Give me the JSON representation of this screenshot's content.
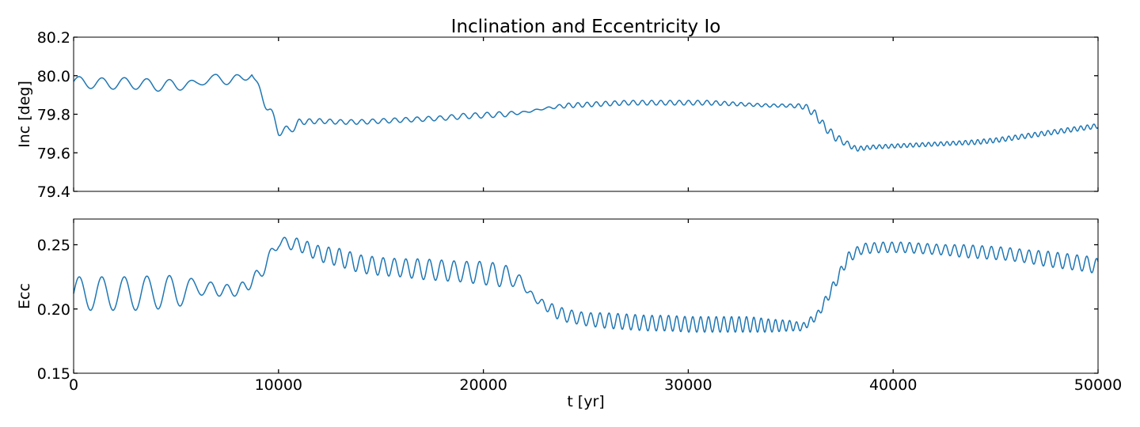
{
  "title": "Inclination and Eccentricity Io",
  "colors": {
    "series": "#1f77b4",
    "axes": "#000000",
    "background": "#ffffff"
  },
  "chart_data": [
    {
      "type": "line",
      "ylabel": "Inc [deg]",
      "xlabel": "",
      "xlim": [
        0,
        50000
      ],
      "ylim": [
        79.4,
        80.2
      ],
      "yticks": [
        79.4,
        79.6,
        79.8,
        80.0,
        80.2
      ],
      "ytick_labels": [
        "79.4",
        "79.6",
        "79.8",
        "80.0",
        "80.2"
      ],
      "xticks": [
        0,
        10000,
        20000,
        30000,
        40000,
        50000
      ],
      "xtick_labels_shown": false,
      "grid": false,
      "series": [
        {
          "x": [
            0,
            1000,
            2000,
            3000,
            4000,
            5000,
            6000,
            7000,
            8000,
            8700,
            9000,
            9500,
            10000,
            10500,
            11000,
            12000,
            13000,
            14000,
            15000,
            16000,
            17000,
            18000,
            19000,
            20000,
            21000,
            22000,
            23000,
            24000,
            25000,
            26000,
            27000,
            28000,
            29000,
            30000,
            31000,
            32000,
            33000,
            34000,
            35000,
            35700,
            36200,
            36700,
            37200,
            37700,
            38200,
            39000,
            40000,
            41000,
            42000,
            43000,
            44000,
            45000,
            46000,
            47000,
            48000,
            49000,
            50000
          ],
          "y": [
            79.97,
            79.96,
            79.96,
            79.96,
            79.95,
            79.95,
            79.96,
            79.99,
            79.97,
            80.01,
            79.94,
            79.83,
            79.72,
            79.71,
            79.76,
            79.765,
            79.76,
            79.76,
            79.765,
            79.77,
            79.775,
            79.78,
            79.79,
            79.795,
            79.8,
            79.81,
            79.83,
            79.845,
            79.85,
            79.855,
            79.86,
            79.86,
            79.86,
            79.86,
            79.86,
            79.855,
            79.85,
            79.845,
            79.845,
            79.84,
            79.8,
            79.73,
            79.68,
            79.65,
            79.62,
            79.63,
            79.635,
            79.64,
            79.645,
            79.65,
            79.655,
            79.665,
            79.68,
            79.695,
            79.71,
            79.725,
            79.74
          ],
          "oscillation": {
            "amplitude_deg": [
              0.028,
              0.028,
              0.03,
              0.03,
              0.03,
              0.03,
              0.015,
              0.02,
              0.035,
              0.01,
              0.02,
              0.03,
              0.03,
              0.025,
              0.015,
              0.012,
              0.012,
              0.012,
              0.012,
              0.012,
              0.012,
              0.012,
              0.014,
              0.014,
              0.014,
              0.005,
              0.004,
              0.012,
              0.012,
              0.012,
              0.012,
              0.012,
              0.012,
              0.012,
              0.012,
              0.01,
              0.008,
              0.008,
              0.008,
              0.015,
              0.02,
              0.02,
              0.02,
              0.015,
              0.012,
              0.01,
              0.01,
              0.01,
              0.01,
              0.01,
              0.012,
              0.012,
              0.012,
              0.012,
              0.012,
              0.012,
              0.012
            ],
            "period_yr": [
              1100,
              1100,
              1100,
              1100,
              1100,
              1100,
              1100,
              1100,
              1100,
              1100,
              700,
              700,
              700,
              700,
              500,
              500,
              520,
              520,
              540,
              540,
              560,
              560,
              580,
              580,
              600,
              600,
              600,
              450,
              450,
              450,
              450,
              450,
              450,
              450,
              450,
              400,
              400,
              400,
              400,
              400,
              400,
              400,
              400,
              400,
              300,
              300,
              300,
              300,
              300,
              300,
              300,
              300,
              320,
              320,
              320,
              320,
              320
            ]
          }
        }
      ]
    },
    {
      "type": "line",
      "ylabel": "Ecc",
      "xlabel": "t [yr]",
      "xlim": [
        0,
        50000
      ],
      "ylim": [
        0.15,
        0.27
      ],
      "yticks": [
        0.15,
        0.2,
        0.25
      ],
      "ytick_labels": [
        "0.15",
        "0.20",
        "0.25"
      ],
      "xticks": [
        0,
        10000,
        20000,
        30000,
        40000,
        50000
      ],
      "xtick_labels": [
        "0",
        "10000",
        "20000",
        "30000",
        "40000",
        "50000"
      ],
      "grid": false,
      "series": [
        {
          "x": [
            0,
            1000,
            2000,
            3000,
            4000,
            5000,
            6000,
            7000,
            8000,
            9000,
            10000,
            11000,
            12000,
            13000,
            14000,
            15000,
            16000,
            17000,
            18000,
            19000,
            20000,
            21000,
            21800,
            22500,
            23500,
            24000,
            25000,
            26000,
            27000,
            28000,
            29000,
            30000,
            31000,
            32000,
            33000,
            34000,
            35000,
            35600,
            36300,
            37000,
            37800,
            38500,
            39500,
            40500,
            41500,
            42500,
            43500,
            44500,
            45500,
            46500,
            47500,
            48500,
            49500,
            50000
          ],
          "y": [
            0.212,
            0.212,
            0.212,
            0.212,
            0.213,
            0.213,
            0.217,
            0.215,
            0.214,
            0.225,
            0.252,
            0.25,
            0.243,
            0.24,
            0.235,
            0.233,
            0.232,
            0.231,
            0.23,
            0.229,
            0.228,
            0.226,
            0.222,
            0.208,
            0.198,
            0.195,
            0.192,
            0.191,
            0.19,
            0.189,
            0.189,
            0.188,
            0.188,
            0.188,
            0.188,
            0.187,
            0.187,
            0.186,
            0.195,
            0.215,
            0.24,
            0.247,
            0.248,
            0.248,
            0.247,
            0.246,
            0.245,
            0.244,
            0.243,
            0.241,
            0.239,
            0.237,
            0.235,
            0.233
          ],
          "oscillation": {
            "amplitude": [
              0.013,
              0.013,
              0.013,
              0.013,
              0.013,
              0.013,
              0.006,
              0.005,
              0.004,
              0.006,
              0.004,
              0.005,
              0.006,
              0.007,
              0.007,
              0.007,
              0.007,
              0.008,
              0.008,
              0.008,
              0.009,
              0.009,
              0.004,
              0.002,
              0.005,
              0.005,
              0.005,
              0.006,
              0.006,
              0.006,
              0.006,
              0.006,
              0.006,
              0.006,
              0.006,
              0.005,
              0.004,
              0.003,
              0.003,
              0.004,
              0.004,
              0.004,
              0.004,
              0.004,
              0.004,
              0.004,
              0.005,
              0.005,
              0.005,
              0.005,
              0.006,
              0.006,
              0.006,
              0.006
            ],
            "period_yr": [
              1100,
              1100,
              1100,
              1100,
              1100,
              1100,
              1000,
              800,
              700,
              700,
              700,
              520,
              520,
              520,
              540,
              540,
              560,
              580,
              600,
              620,
              640,
              660,
              660,
              500,
              480,
              480,
              460,
              440,
              420,
              410,
              400,
              390,
              380,
              370,
              360,
              350,
              340,
              340,
              350,
              380,
              400,
              420,
              430,
              430,
              440,
              440,
              450,
              450,
              460,
              460,
              470,
              470,
              480,
              480
            ]
          }
        }
      ]
    }
  ]
}
